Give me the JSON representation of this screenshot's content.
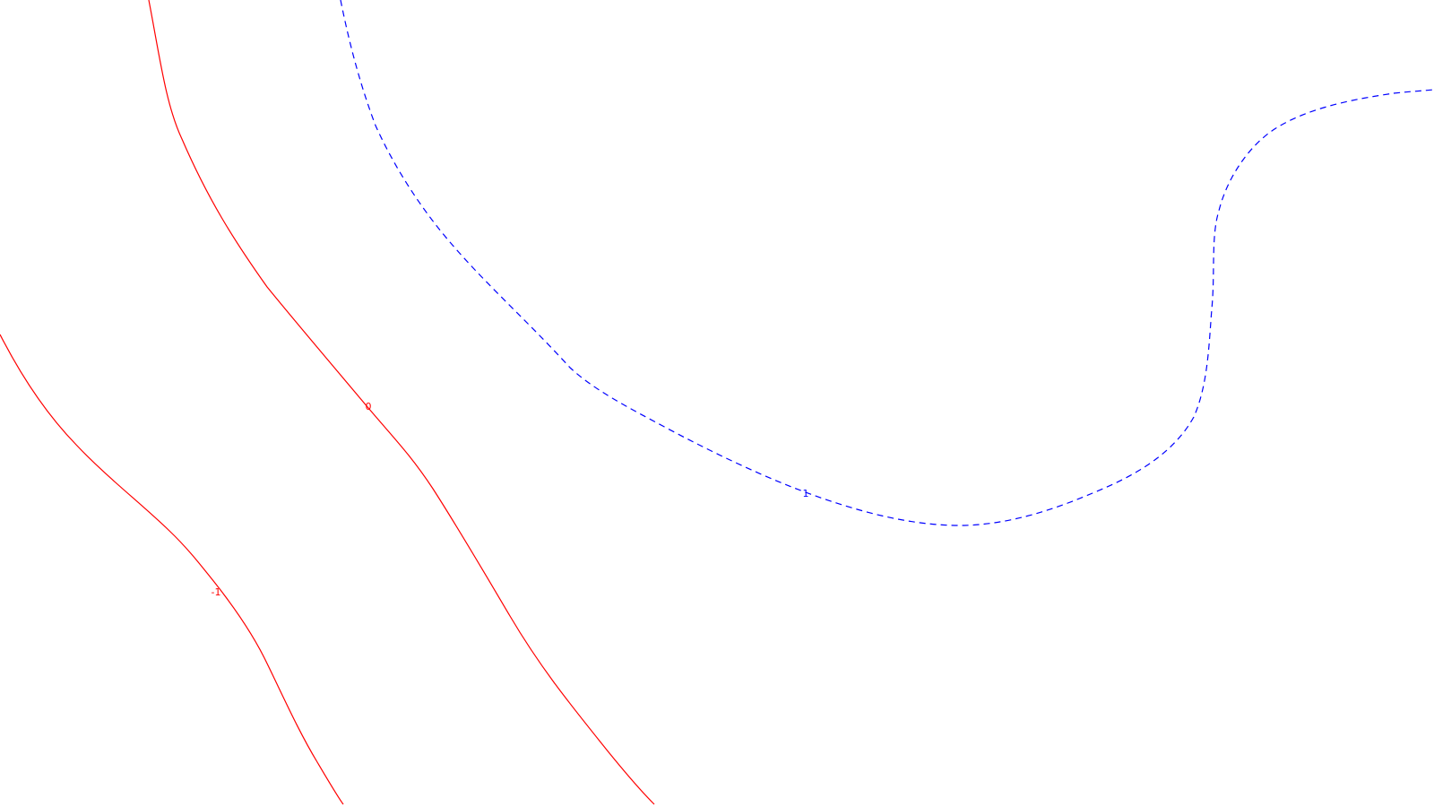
{
  "chart_data": {
    "type": "contour",
    "title": "",
    "xlabel": "",
    "ylabel": "",
    "grid": false,
    "colors": {
      "negative_and_zero": "#ff0000",
      "positive": "#0000ff",
      "background": "#ffffff"
    },
    "contours": [
      {
        "level": "-1",
        "line_style": "solid",
        "color": "#ff0000",
        "label": "-1"
      },
      {
        "level": "0",
        "line_style": "solid",
        "color": "#ff0000",
        "label": "0"
      },
      {
        "level": "1",
        "line_style": "dashed",
        "color": "#0000ff",
        "label": "1"
      }
    ]
  }
}
